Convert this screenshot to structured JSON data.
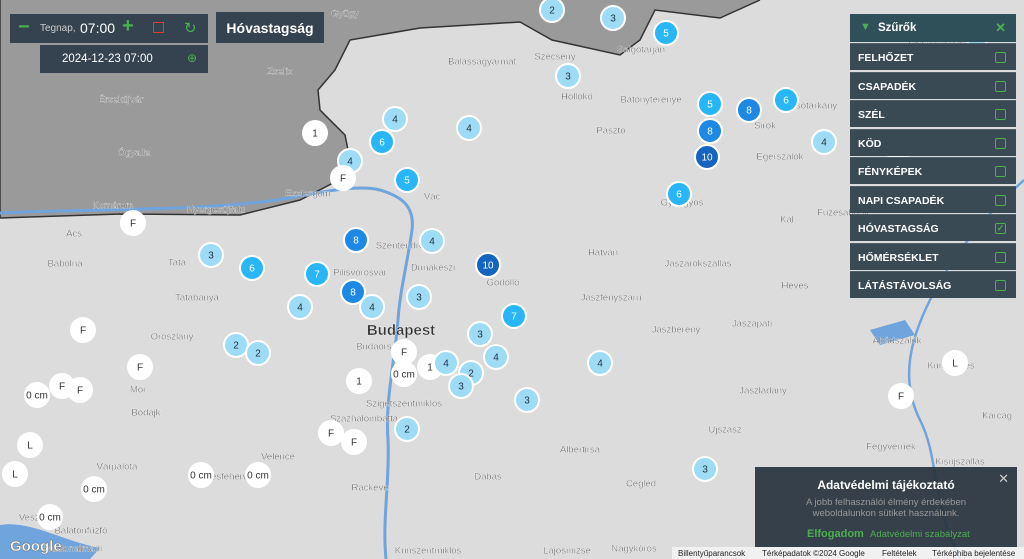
{
  "header": {
    "day": "Tegnap,",
    "time": "07:00",
    "datetime": "2024-12-23 07:00",
    "layer_title": "Hóvastagság"
  },
  "filters": {
    "title": "Szűrők",
    "items": [
      {
        "name": "FELHŐZET",
        "checked": false
      },
      {
        "name": "CSAPADÉK",
        "checked": false
      },
      {
        "name": "SZÉL",
        "checked": false
      },
      {
        "name": "KÖD",
        "checked": false
      },
      {
        "name": "FÉNYKÉPEK",
        "checked": false
      },
      {
        "name": "NAPI CSAPADÉK",
        "checked": false
      },
      {
        "name": "HÓVASTAGSÁG",
        "checked": true
      },
      {
        "name": "HŐMÉRSÉKLET",
        "checked": false
      },
      {
        "name": "LÁTÁSTÁVOLSÁG",
        "checked": false
      }
    ]
  },
  "privacy": {
    "title": "Adatvédelmi tájékoztató",
    "text": "A jobb felhasználói élmény érdekében weboldalunkon sütiket használunk.",
    "accept": "Elfogadom",
    "policy": "Adatvédelmi szabályzat"
  },
  "footer": {
    "logo": "Google",
    "shortcuts": "Billentyűparancsok",
    "map_data": "Térképadatok ©2024 Google",
    "terms": "Feltételek",
    "report": "Térképhiba bejelentése"
  },
  "places": [
    "Gyügy",
    "Zselíz",
    "Balassagyarmat",
    "Szécsény",
    "Salgótarján",
    "Szilvásvárad",
    "Hollókő",
    "Bátonyterenye",
    "Felsőtárkány",
    "Pásztó",
    "Sirok",
    "Egerszalók",
    "Nyergesújfalu",
    "Esztergom",
    "Vác",
    "Komárom",
    "Ács",
    "Szentendre",
    "Dunakeszi",
    "Gödöllő",
    "Hatvan",
    "Jászárokszállás",
    "Heves",
    "Kál",
    "Füzesabony",
    "Gyöngyös",
    "Bábolna",
    "Tata",
    "Tatabánya",
    "Pilisvörösvár",
    "Budapest",
    "Jászfényszaru",
    "Jászberény",
    "Jászapáti",
    "Budaörs",
    "Oroszlány",
    "Abádszalók",
    "Kunhegyes",
    "Mór",
    "Bodajk",
    "Szigetszentmiklós",
    "Százhalombatta",
    "Jászladány",
    "Újszász",
    "Karcag",
    "Albertirsa",
    "Fegyvernek",
    "Velence",
    "Székesfehérvár",
    "Várpalota",
    "Kisújszállás",
    "Cegléd",
    "Dabas",
    "Ráckeve",
    "Veszprém",
    "Balatonfűzfő",
    "Balatonalmádi",
    "Kunszentmiklós",
    "Lajosmizse",
    "Nagykőrös",
    "Érsekújvár",
    "Ógyalla"
  ],
  "markers": [
    "2",
    "3",
    "5",
    "3",
    "4",
    "4",
    "6",
    "1",
    "4",
    "F",
    "5",
    "F",
    "8",
    "4",
    "3",
    "6",
    "7",
    "10",
    "8",
    "4",
    "4",
    "3",
    "7",
    "3",
    "F",
    "2",
    "2",
    "F",
    "4",
    "4",
    "F",
    "1",
    "4",
    "0 cm",
    "2",
    "3",
    "F",
    "F",
    "0 cm",
    "1",
    "3",
    "2",
    "F",
    "F",
    "L",
    "L",
    "0 cm",
    "0 cm",
    "0 cm",
    "0 cm",
    "3",
    "5",
    "8",
    "8",
    "6",
    "4",
    "10",
    "6",
    "L",
    "F",
    "4",
    "L"
  ]
}
